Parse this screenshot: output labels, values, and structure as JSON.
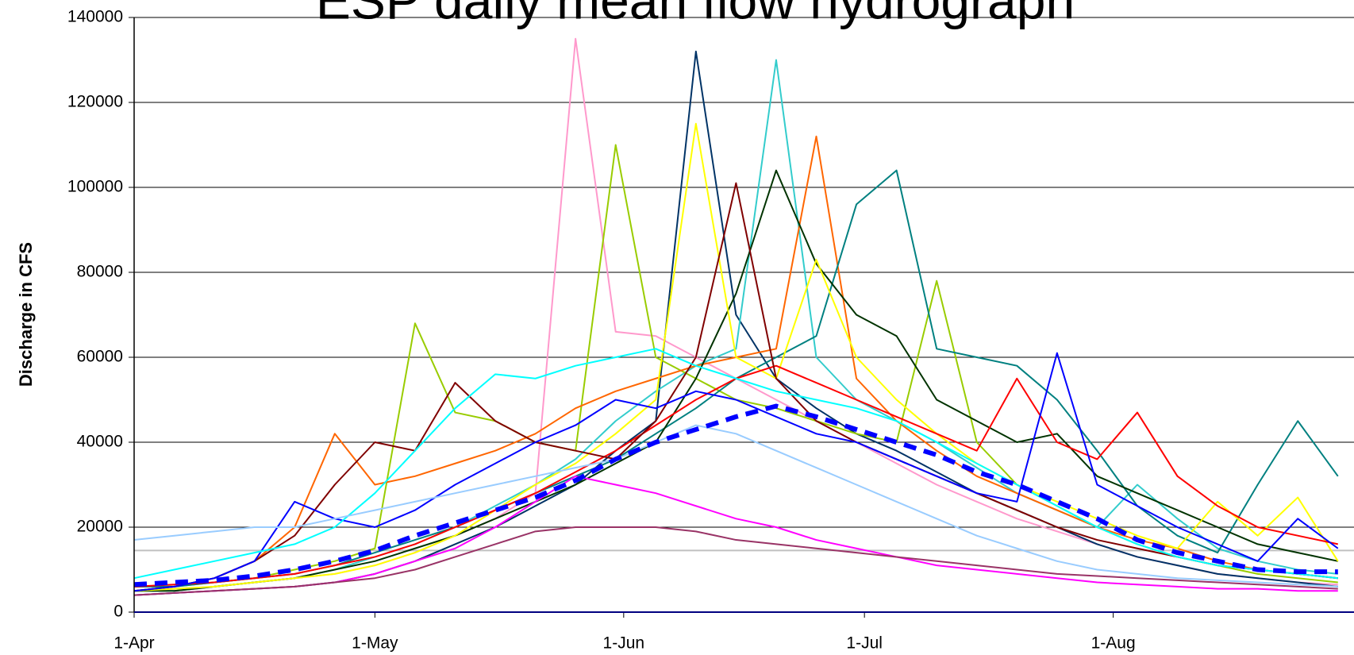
{
  "chart_data": {
    "type": "line",
    "title": "ESP daily mean flow hydrograph",
    "y_label": "Discharge in CFS",
    "xlim": [
      0,
      152
    ],
    "xticks": [
      {
        "value": 0,
        "label": "1-Apr"
      },
      {
        "value": 30,
        "label": "1-May"
      },
      {
        "value": 61,
        "label": "1-Jun"
      },
      {
        "value": 91,
        "label": "1-Jul"
      },
      {
        "value": 122,
        "label": "1-Aug"
      }
    ],
    "ylim": [
      0,
      140000
    ],
    "yticks": [
      0,
      20000,
      40000,
      60000,
      80000,
      100000,
      120000,
      140000
    ],
    "grid": true,
    "hline": {
      "value": 14500,
      "color": "#c0c0c0"
    },
    "x": [
      0,
      5,
      10,
      15,
      20,
      25,
      30,
      35,
      40,
      45,
      50,
      55,
      60,
      65,
      70,
      75,
      80,
      85,
      90,
      95,
      100,
      105,
      110,
      115,
      120,
      125,
      130,
      135,
      140,
      145,
      150
    ],
    "series": [
      {
        "color": "#ff99cc",
        "values": [
          5000,
          5500,
          6000,
          7000,
          8000,
          9000,
          11000,
          14000,
          18000,
          22000,
          28000,
          135000,
          66000,
          65000,
          60000,
          55000,
          50000,
          45000,
          40000,
          35000,
          30000,
          26000,
          22000,
          19000,
          16000,
          13000,
          11000,
          9000,
          8000,
          7000,
          6500
        ]
      },
      {
        "color": "#003366",
        "values": [
          4000,
          4500,
          5000,
          5500,
          6000,
          7000,
          9000,
          12000,
          16000,
          20000,
          25000,
          30000,
          38000,
          45000,
          132000,
          70000,
          55000,
          48000,
          42000,
          38000,
          33000,
          28000,
          24000,
          20000,
          16000,
          13000,
          11000,
          9000,
          8000,
          7000,
          6000
        ]
      },
      {
        "color": "#33cccc",
        "values": [
          5000,
          5000,
          6000,
          7000,
          8000,
          10000,
          13000,
          16000,
          20000,
          25000,
          30000,
          36000,
          45000,
          52000,
          58000,
          62000,
          130000,
          60000,
          50000,
          45000,
          40000,
          34000,
          28000,
          24000,
          20000,
          30000,
          22000,
          15000,
          12000,
          10000,
          9000
        ]
      },
      {
        "color": "#99cc00",
        "values": [
          6000,
          6000,
          7000,
          8000,
          10000,
          12000,
          15000,
          68000,
          47000,
          45000,
          40000,
          38000,
          110000,
          60000,
          55000,
          50000,
          48000,
          45000,
          42000,
          40000,
          78000,
          40000,
          30000,
          25000,
          20000,
          16000,
          13000,
          11000,
          9000,
          8000,
          7000
        ]
      },
      {
        "color": "#ff6600",
        "values": [
          5000,
          6000,
          8000,
          12000,
          20000,
          42000,
          30000,
          32000,
          35000,
          38000,
          42000,
          48000,
          52000,
          55000,
          58000,
          60000,
          62000,
          112000,
          55000,
          45000,
          38000,
          32000,
          28000,
          24000,
          20000,
          17000,
          15000,
          12000,
          10000,
          9000,
          8000
        ]
      },
      {
        "color": "#008080",
        "values": [
          6000,
          6000,
          7000,
          8000,
          9000,
          11000,
          14000,
          17000,
          20000,
          24000,
          28000,
          32000,
          36000,
          42000,
          48000,
          55000,
          60000,
          65000,
          96000,
          104000,
          62000,
          60000,
          58000,
          50000,
          38000,
          25000,
          18000,
          14000,
          30000,
          45000,
          32000
        ]
      },
      {
        "color": "#003300",
        "values": [
          5000,
          5000,
          6000,
          7000,
          8000,
          10000,
          12000,
          15000,
          18000,
          22000,
          26000,
          30000,
          35000,
          40000,
          55000,
          75000,
          104000,
          82000,
          70000,
          65000,
          50000,
          45000,
          40000,
          42000,
          32000,
          28000,
          24000,
          20000,
          16000,
          14000,
          12000
        ]
      },
      {
        "color": "#ffff00",
        "values": [
          5000,
          5500,
          6000,
          7000,
          8000,
          9000,
          11000,
          14000,
          18000,
          24000,
          30000,
          35000,
          42000,
          50000,
          115000,
          60000,
          55000,
          83000,
          60000,
          50000,
          42000,
          35000,
          30000,
          26000,
          22000,
          18000,
          15000,
          26000,
          18000,
          27000,
          12000
        ]
      },
      {
        "color": "#ff0000",
        "values": [
          6000,
          6500,
          7000,
          8000,
          9000,
          11000,
          13000,
          16000,
          20000,
          24000,
          28000,
          33000,
          38000,
          44000,
          50000,
          55000,
          58000,
          54000,
          50000,
          46000,
          42000,
          38000,
          55000,
          40000,
          36000,
          47000,
          32000,
          25000,
          20000,
          18000,
          16000
        ]
      },
      {
        "color": "#800000",
        "values": [
          5000,
          6000,
          8000,
          12000,
          18000,
          30000,
          40000,
          38000,
          54000,
          45000,
          40000,
          38000,
          36000,
          45000,
          60000,
          101000,
          55000,
          45000,
          40000,
          36000,
          32000,
          28000,
          24000,
          20000,
          17000,
          15000,
          13000,
          11000,
          10000,
          9000,
          8000
        ]
      },
      {
        "color": "#ff00ff",
        "values": [
          4000,
          4500,
          5000,
          5500,
          6000,
          7000,
          9000,
          12000,
          15000,
          20000,
          26000,
          32000,
          30000,
          28000,
          25000,
          22000,
          20000,
          17000,
          15000,
          13000,
          11000,
          10000,
          9000,
          8000,
          7000,
          6500,
          6000,
          5500,
          5500,
          5000,
          5000
        ]
      },
      {
        "color": "#993366",
        "values": [
          4000,
          4500,
          5000,
          5500,
          6000,
          7000,
          8000,
          10000,
          13000,
          16000,
          19000,
          20000,
          20000,
          20000,
          19000,
          17000,
          16000,
          15000,
          14000,
          13000,
          12000,
          11000,
          10000,
          9000,
          8500,
          8000,
          7500,
          7000,
          6500,
          6000,
          5500
        ]
      },
      {
        "color": "#0000ff",
        "values": [
          5000,
          6000,
          8000,
          12000,
          26000,
          22000,
          20000,
          24000,
          30000,
          35000,
          40000,
          44000,
          50000,
          48000,
          52000,
          50000,
          46000,
          42000,
          40000,
          36000,
          32000,
          28000,
          26000,
          61000,
          30000,
          25000,
          20000,
          16000,
          12000,
          22000,
          15000
        ]
      },
      {
        "color": "#00ffff",
        "values": [
          8000,
          10000,
          12000,
          14000,
          16000,
          20000,
          28000,
          38000,
          48000,
          56000,
          55000,
          58000,
          60000,
          62000,
          58000,
          55000,
          52000,
          50000,
          48000,
          45000,
          40000,
          35000,
          30000,
          25000,
          20000,
          16000,
          13000,
          11000,
          10000,
          9000,
          8000
        ]
      },
      {
        "color": "#99ccff",
        "values": [
          17000,
          18000,
          19000,
          20000,
          20000,
          22000,
          24000,
          26000,
          28000,
          30000,
          32000,
          34000,
          36000,
          40000,
          44000,
          42000,
          38000,
          34000,
          30000,
          26000,
          22000,
          18000,
          15000,
          12000,
          10000,
          9000,
          8000,
          7500,
          7000,
          6500,
          6000
        ]
      },
      {
        "color": "#0000ff",
        "width": 6,
        "dashed": true,
        "values": [
          6500,
          7000,
          7500,
          8500,
          10000,
          12000,
          14500,
          18000,
          21000,
          24000,
          27000,
          31000,
          36000,
          40000,
          43000,
          46000,
          48500,
          46000,
          43000,
          40000,
          37000,
          33000,
          30000,
          26000,
          22000,
          17000,
          14000,
          12000,
          10000,
          9500,
          9500
        ]
      }
    ]
  }
}
